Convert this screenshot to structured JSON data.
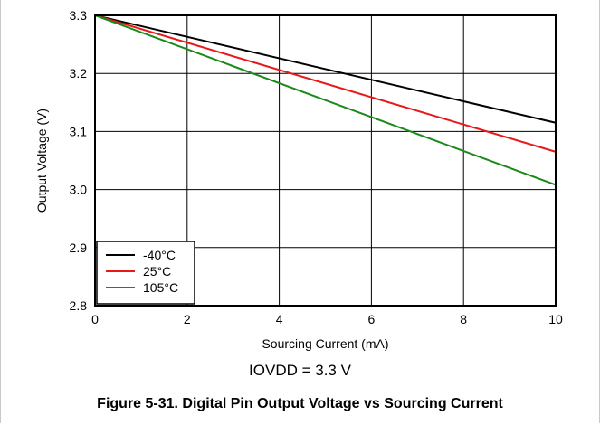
{
  "chart_data": {
    "type": "line",
    "xlabel": "Sourcing Current (mA)",
    "ylabel": "Output Voltage (V)",
    "xlim": [
      0,
      10
    ],
    "ylim": [
      2.8,
      3.3
    ],
    "xticks": [
      "0",
      "2",
      "4",
      "6",
      "8",
      "10"
    ],
    "yticks": [
      "2.8",
      "2.9",
      "3.0",
      "3.1",
      "3.2",
      "3.3"
    ],
    "grid": true,
    "legend_position": "bottom-left",
    "series": [
      {
        "name": "-40°C",
        "color": "#000000",
        "x": [
          0,
          10
        ],
        "y": [
          3.3,
          3.115
        ]
      },
      {
        "name": "25°C",
        "color": "#e8191a",
        "x": [
          0,
          10
        ],
        "y": [
          3.3,
          3.065
        ]
      },
      {
        "name": "105°C",
        "color": "#1a8a1a",
        "x": [
          0,
          10
        ],
        "y": [
          3.3,
          3.008
        ]
      }
    ]
  },
  "condition_text": "IOVDD = 3.3 V",
  "caption": "Figure 5-31. Digital Pin Output Voltage vs Sourcing Current"
}
